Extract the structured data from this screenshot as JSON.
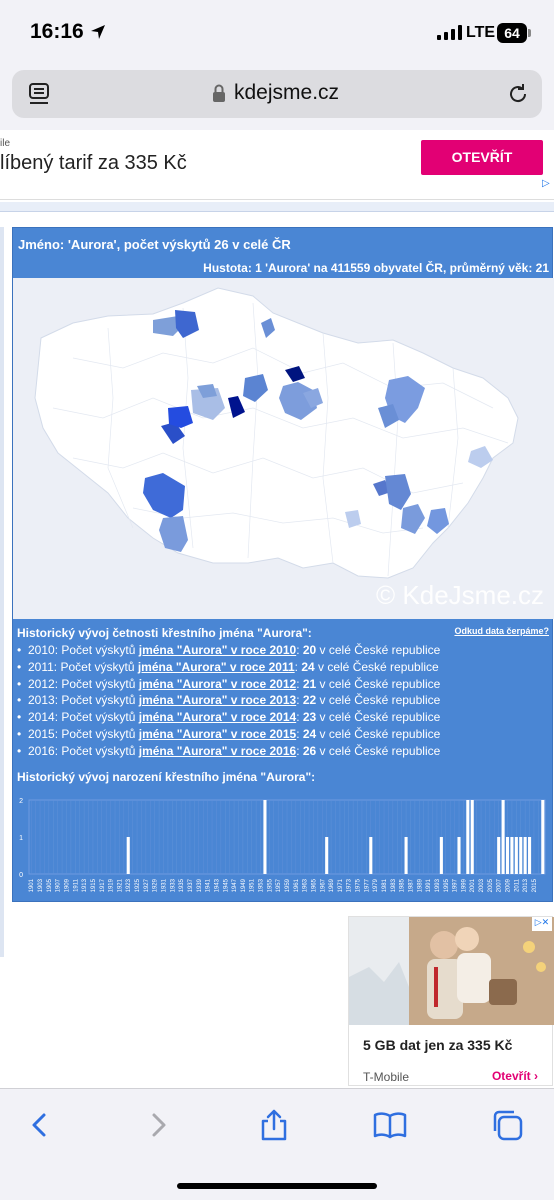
{
  "status": {
    "time": "16:16",
    "network": "LTE",
    "battery": "64"
  },
  "browser": {
    "url": "kdejsme.cz"
  },
  "ad_top": {
    "small": "ile",
    "text": "líbený tarif za 335 Kč",
    "button": "OTEVŘÍT",
    "adchoices": "▷"
  },
  "panel": {
    "title": "Jméno: 'Aurora', počet výskytů 26 v celé ČR",
    "density": "Hustota: 1 'Aurora' na 411559 obyvatel ČR, průměrný věk: 21",
    "watermark": "© KdeJsme.cz"
  },
  "history": {
    "title": "Historický vývoj četnosti křestního jména \"Aurora\":",
    "source_link": "Odkud data čerpáme?",
    "rows": [
      {
        "prefix": "2010: Počet výskytů ",
        "link": "jména \"Aurora\" v roce 2010",
        "colon": ": ",
        "count": "20",
        "suffix": " v celé České republice"
      },
      {
        "prefix": "2011: Počet výskytů ",
        "link": "jména \"Aurora\" v roce 2011",
        "colon": ": ",
        "count": "24",
        "suffix": " v celé České republice"
      },
      {
        "prefix": "2012: Počet výskytů ",
        "link": "jména \"Aurora\" v roce 2012",
        "colon": ": ",
        "count": "21",
        "suffix": " v celé České republice"
      },
      {
        "prefix": "2013: Počet výskytů ",
        "link": "jména \"Aurora\" v roce 2013",
        "colon": ": ",
        "count": "22",
        "suffix": " v celé České republice"
      },
      {
        "prefix": "2014: Počet výskytů ",
        "link": "jména \"Aurora\" v roce 2014",
        "colon": ": ",
        "count": "23",
        "suffix": " v celé České republice"
      },
      {
        "prefix": "2015: Počet výskytů ",
        "link": "jména \"Aurora\" v roce 2015",
        "colon": ": ",
        "count": "24",
        "suffix": " v celé České republice"
      },
      {
        "prefix": "2016: Počet výskytů ",
        "link": "jména \"Aurora\" v roce 2016",
        "colon": ": ",
        "count": "26",
        "suffix": " v celé České republice"
      }
    ]
  },
  "births": {
    "title": "Historický vývoj narození křestního jména \"Aurora\":",
    "chart_data": {
      "type": "bar",
      "ylim": [
        0,
        2
      ],
      "yticks": [
        "0",
        "1",
        "2"
      ],
      "xticks": [
        "1901",
        "1903",
        "1905",
        "1907",
        "1909",
        "1911",
        "1913",
        "1915",
        "1917",
        "1919",
        "1921",
        "1923",
        "1925",
        "1927",
        "1929",
        "1931",
        "1933",
        "1935",
        "1937",
        "1939",
        "1941",
        "1943",
        "1945",
        "1947",
        "1949",
        "1951",
        "1953",
        "1955",
        "1957",
        "1959",
        "1961",
        "1963",
        "1965",
        "1967",
        "1969",
        "1971",
        "1973",
        "1975",
        "1977",
        "1979",
        "1981",
        "1983",
        "1985",
        "1987",
        "1989",
        "1991",
        "1993",
        "1995",
        "1997",
        "1999",
        "2001",
        "2003",
        "2005",
        "2007",
        "2009",
        "2011",
        "2013",
        "2015"
      ],
      "years": [
        1923,
        1954,
        1968,
        1978,
        1986,
        1994,
        1998,
        2000,
        2001,
        2007,
        2008,
        2009,
        2010,
        2011,
        2012,
        2013,
        2014,
        2017
      ],
      "values": [
        1,
        2,
        1,
        1,
        1,
        1,
        1,
        2,
        2,
        1,
        2,
        1,
        1,
        1,
        1,
        1,
        1,
        2
      ]
    }
  },
  "ad_bottom": {
    "text": "5 GB dat jen za 335 Kč",
    "brand": "T-Mobile",
    "cta": "Otevřít",
    "close": "▷✕"
  },
  "colors": {
    "accent": "#4a86d4",
    "brand": "#e20074"
  }
}
